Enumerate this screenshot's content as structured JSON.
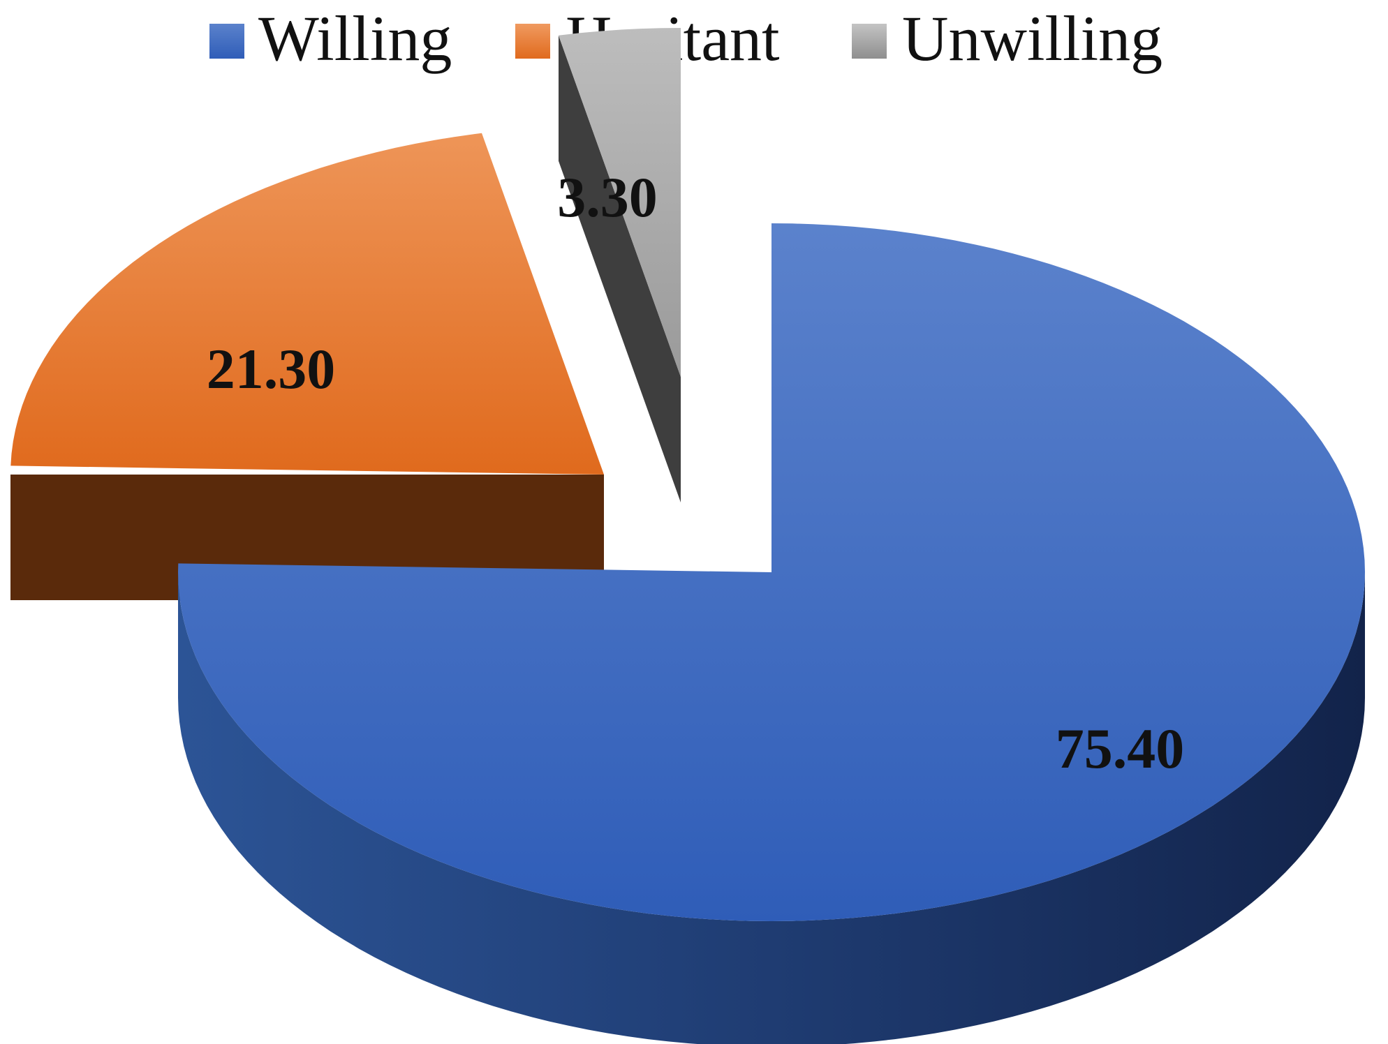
{
  "chart_data": {
    "type": "pie",
    "variant": "3d-exploded",
    "title": "",
    "legend_position": "top",
    "categories": [
      "Willing",
      "Hesitant",
      "Unwilling"
    ],
    "values": [
      75.4,
      21.3,
      3.3
    ],
    "value_labels": [
      "75.40",
      "21.30",
      "3.30"
    ],
    "colors": [
      "#4472C4",
      "#ED7D31",
      "#A5A5A5"
    ],
    "legend": [
      {
        "label": "Willing",
        "color": "#4472C4"
      },
      {
        "label": "Hesitant",
        "color": "#ED7D31"
      },
      {
        "label": "Unwilling",
        "color": "#A5A5A5"
      }
    ]
  }
}
